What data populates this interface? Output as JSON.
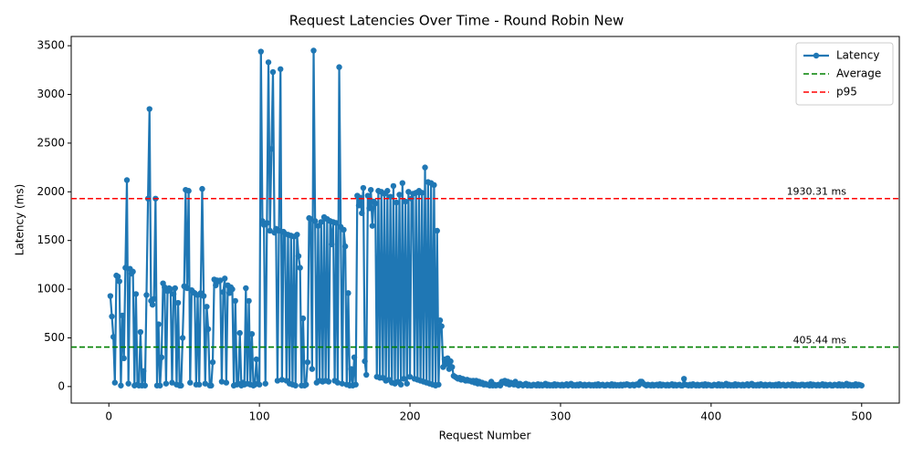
{
  "chart_data": {
    "type": "line",
    "title": "Request Latencies Over Time - Round Robin New",
    "xlabel": "Request Number",
    "ylabel": "Latency (ms)",
    "xlim": [
      -25,
      525
    ],
    "ylim": [
      -170,
      3595
    ],
    "xticks": [
      0,
      100,
      200,
      300,
      400,
      500
    ],
    "yticks": [
      0,
      500,
      1000,
      1500,
      2000,
      2500,
      3000,
      3500
    ],
    "grid": false,
    "legend": "upper right",
    "x": [
      1,
      2,
      3,
      4,
      5,
      6,
      7,
      8,
      9,
      10,
      11,
      12,
      13,
      14,
      15,
      16,
      17,
      18,
      19,
      20,
      21,
      22,
      23,
      24,
      25,
      26,
      27,
      28,
      29,
      30,
      31,
      32,
      33,
      34,
      35,
      36,
      37,
      38,
      39,
      40,
      41,
      42,
      43,
      44,
      45,
      46,
      47,
      48,
      49,
      50,
      51,
      52,
      53,
      54,
      55,
      56,
      57,
      58,
      59,
      60,
      61,
      62,
      63,
      64,
      65,
      66,
      67,
      68,
      69,
      70,
      71,
      72,
      73,
      74,
      75,
      76,
      77,
      78,
      79,
      80,
      81,
      82,
      83,
      84,
      85,
      86,
      87,
      88,
      89,
      90,
      91,
      92,
      93,
      94,
      95,
      96,
      97,
      98,
      99,
      100,
      101,
      102,
      103,
      104,
      105,
      106,
      107,
      108,
      109,
      110,
      111,
      112,
      113,
      114,
      115,
      116,
      117,
      118,
      119,
      120,
      121,
      122,
      123,
      124,
      125,
      126,
      127,
      128,
      129,
      130,
      131,
      132,
      133,
      134,
      135,
      136,
      137,
      138,
      139,
      140,
      141,
      142,
      143,
      144,
      145,
      146,
      147,
      148,
      149,
      150,
      151,
      152,
      153,
      154,
      155,
      156,
      157,
      158,
      159,
      160,
      161,
      162,
      163,
      164,
      165,
      166,
      167,
      168,
      169,
      170,
      171,
      172,
      173,
      174,
      175,
      176,
      177,
      178,
      179,
      180,
      181,
      182,
      183,
      184,
      185,
      186,
      187,
      188,
      189,
      190,
      191,
      192,
      193,
      194,
      195,
      196,
      197,
      198,
      199,
      200,
      201,
      202,
      203,
      204,
      205,
      206,
      207,
      208,
      209,
      210,
      211,
      212,
      213,
      214,
      215,
      216,
      217,
      218,
      219,
      220,
      221,
      222,
      223,
      224,
      225,
      226,
      227,
      228,
      229,
      230,
      231,
      232,
      233,
      234,
      235,
      236,
      237,
      238,
      239,
      240,
      241,
      242,
      243,
      244,
      245,
      246,
      247,
      248,
      249,
      250,
      251,
      252,
      253,
      254,
      255,
      256,
      257,
      258,
      259,
      260,
      261,
      262,
      263,
      264,
      265,
      266,
      267,
      268,
      269,
      270,
      271,
      272,
      273,
      274,
      275,
      276,
      277,
      278,
      279,
      280,
      281,
      282,
      283,
      284,
      285,
      286,
      287,
      288,
      289,
      290,
      291,
      292,
      293,
      294,
      295,
      296,
      297,
      298,
      299,
      300,
      301,
      302,
      303,
      304,
      305,
      306,
      307,
      308,
      309,
      310,
      311,
      312,
      313,
      314,
      315,
      316,
      317,
      318,
      319,
      320,
      321,
      322,
      323,
      324,
      325,
      326,
      327,
      328,
      329,
      330,
      331,
      332,
      333,
      334,
      335,
      336,
      337,
      338,
      339,
      340,
      341,
      342,
      343,
      344,
      345,
      346,
      347,
      348,
      349,
      350,
      351,
      352,
      353,
      354,
      355,
      356,
      357,
      358,
      359,
      360,
      361,
      362,
      363,
      364,
      365,
      366,
      367,
      368,
      369,
      370,
      371,
      372,
      373,
      374,
      375,
      376,
      377,
      378,
      379,
      380,
      381,
      382,
      383,
      384,
      385,
      386,
      387,
      388,
      389,
      390,
      391,
      392,
      393,
      394,
      395,
      396,
      397,
      398,
      399,
      400,
      401,
      402,
      403,
      404,
      405,
      406,
      407,
      408,
      409,
      410,
      411,
      412,
      413,
      414,
      415,
      416,
      417,
      418,
      419,
      420,
      421,
      422,
      423,
      424,
      425,
      426,
      427,
      428,
      429,
      430,
      431,
      432,
      433,
      434,
      435,
      436,
      437,
      438,
      439,
      440,
      441,
      442,
      443,
      444,
      445,
      446,
      447,
      448,
      449,
      450,
      451,
      452,
      453,
      454,
      455,
      456,
      457,
      458,
      459,
      460,
      461,
      462,
      463,
      464,
      465,
      466,
      467,
      468,
      469,
      470,
      471,
      472,
      473,
      474,
      475,
      476,
      477,
      478,
      479,
      480,
      481,
      482,
      483,
      484,
      485,
      486,
      487,
      488,
      489,
      490,
      491,
      492,
      493,
      494,
      495,
      496,
      497,
      498,
      499,
      500
    ],
    "series": [
      {
        "name": "Latency",
        "color": "#1f77b4",
        "values": [
          930,
          720,
          510,
          40,
          1140,
          1130,
          1080,
          10,
          730,
          290,
          1220,
          2120,
          30,
          1210,
          1160,
          1180,
          10,
          950,
          20,
          10,
          560,
          10,
          160,
          10,
          940,
          1930,
          2850,
          880,
          840,
          900,
          1930,
          10,
          640,
          10,
          300,
          1060,
          1020,
          30,
          980,
          1010,
          1000,
          40,
          950,
          1010,
          20,
          860,
          10,
          10,
          500,
          1030,
          2020,
          1010,
          2010,
          40,
          990,
          970,
          960,
          20,
          940,
          20,
          960,
          2030,
          930,
          30,
          820,
          590,
          10,
          10,
          250,
          1100,
          1040,
          1090,
          1080,
          1090,
          50,
          970,
          1110,
          40,
          1040,
          960,
          1020,
          1000,
          10,
          880,
          20,
          30,
          550,
          10,
          40,
          20,
          1010,
          30,
          880,
          20,
          540,
          10,
          20,
          280,
          30,
          20,
          3440,
          1700,
          1660,
          30,
          1680,
          3330,
          1600,
          2440,
          3230,
          1580,
          1620,
          60,
          1600,
          3260,
          70,
          1590,
          1570,
          60,
          1560,
          30,
          1550,
          20,
          1540,
          10,
          1560,
          1340,
          1220,
          10,
          700,
          10,
          20,
          250,
          1730,
          1720,
          180,
          3450,
          1700,
          40,
          1650,
          60,
          1690,
          50,
          1740,
          60,
          1720,
          50,
          1700,
          1460,
          1690,
          60,
          1680,
          40,
          3280,
          1640,
          30,
          1610,
          1440,
          20,
          960,
          10,
          180,
          10,
          300,
          20,
          1960,
          1860,
          1940,
          1780,
          2040,
          260,
          120,
          1960,
          1830,
          2020,
          1650,
          1900,
          1880,
          100,
          2010,
          90,
          2000,
          90,
          1980,
          60,
          2010,
          70,
          1950,
          40,
          2060,
          30,
          1890,
          50,
          1970,
          20,
          2090,
          80,
          1900,
          30,
          2000,
          100,
          1930,
          1980,
          80,
          1990,
          70,
          2010,
          60,
          1990,
          50,
          2250,
          40,
          2100,
          30,
          2090,
          20,
          2070,
          10,
          1600,
          20,
          680,
          620,
          200,
          280,
          230,
          290,
          180,
          260,
          200,
          110,
          100,
          90,
          80,
          90,
          70,
          80,
          70,
          60,
          70,
          60,
          60,
          50,
          60,
          40,
          60,
          30,
          50,
          30,
          40,
          20,
          30,
          20,
          20,
          10,
          50,
          10,
          20,
          10,
          15,
          20,
          10,
          50,
          40,
          60,
          30,
          50,
          20,
          40,
          30,
          20,
          50,
          20,
          10,
          30,
          20,
          10,
          20,
          30,
          10,
          20,
          10,
          10,
          20,
          15,
          10,
          25,
          10,
          20,
          10,
          15,
          30,
          10,
          20,
          10,
          15,
          10,
          25,
          10,
          20,
          15,
          10,
          20,
          10,
          15,
          25,
          10,
          20,
          30,
          10,
          15,
          10,
          20,
          10,
          25,
          15,
          10,
          20,
          10,
          15,
          20,
          10,
          15,
          10,
          20,
          10,
          25,
          10,
          15,
          20,
          10,
          10,
          20,
          15,
          10,
          25,
          10,
          20,
          10,
          15,
          10,
          20,
          10,
          20,
          15,
          25,
          20,
          10,
          15,
          20,
          10,
          20,
          25,
          15,
          50,
          50,
          30,
          20,
          10,
          20,
          15,
          10,
          20,
          10,
          15,
          20,
          10,
          25,
          10,
          20,
          15,
          10,
          20,
          10,
          15,
          25,
          10,
          20,
          10,
          15,
          20,
          10,
          10,
          80,
          20,
          15,
          10,
          20,
          10,
          25,
          15,
          10,
          20,
          10,
          15,
          20,
          10,
          25,
          10,
          20,
          15,
          10,
          10,
          20,
          15,
          10,
          25,
          10,
          20,
          10,
          15,
          30,
          10,
          20,
          10,
          15,
          10,
          25,
          10,
          20,
          15,
          10,
          20,
          10,
          15,
          25,
          10,
          20,
          30,
          10,
          15,
          10,
          20,
          10,
          25,
          15,
          10,
          20,
          10,
          15,
          20,
          10,
          15,
          10,
          20,
          10,
          25,
          10,
          15,
          20,
          10,
          10,
          20,
          15,
          10,
          25,
          10,
          20,
          10,
          15,
          10,
          20,
          20,
          10,
          15,
          20,
          10,
          25,
          10,
          20,
          15,
          10,
          20,
          10,
          15,
          25,
          10,
          20,
          10,
          15,
          20,
          10,
          10,
          20,
          15,
          10,
          25,
          10,
          20,
          10,
          15,
          30,
          10,
          20,
          10,
          15,
          10,
          25,
          10,
          20,
          15,
          10
        ]
      }
    ],
    "hlines": [
      {
        "name": "Average",
        "value": 405.44,
        "label": "405.44 ms",
        "color": "#008000"
      },
      {
        "name": "p95",
        "value": 1930.31,
        "label": "1930.31 ms",
        "color": "#ff0000"
      }
    ]
  }
}
